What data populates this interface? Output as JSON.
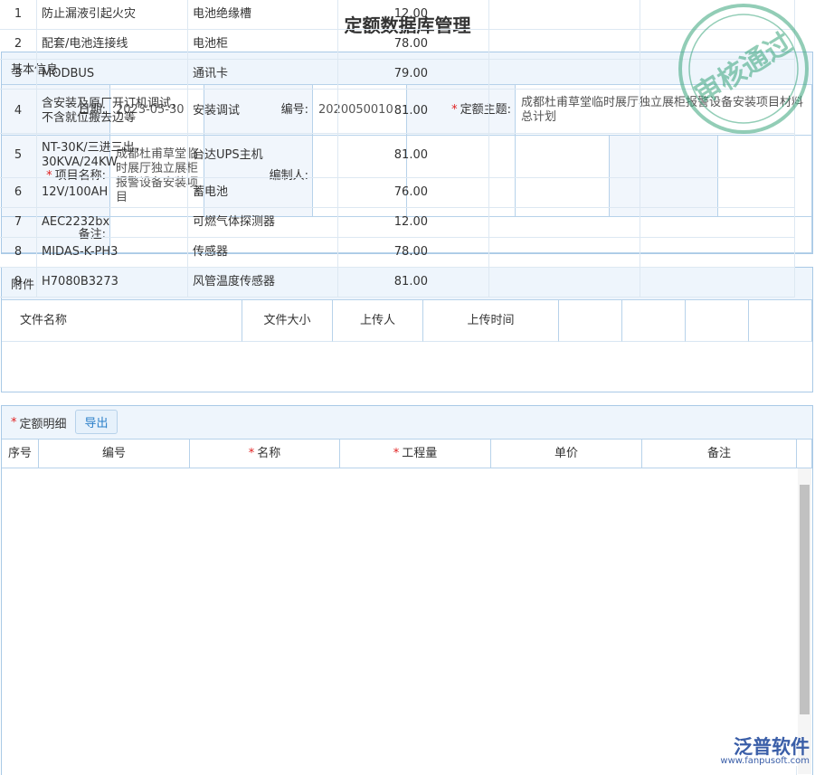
{
  "title": "定额数据库管理",
  "required_mark": "*",
  "stamp": "审核通过",
  "basic_info": {
    "heading": "基本信息",
    "fields": [
      {
        "label": "日期:",
        "value": "2023-05-30"
      },
      {
        "label": "编号:",
        "value": "2020050010"
      },
      {
        "label": "定额主题:",
        "value": "成都杜甫草堂临时展厅独立展柜报警设备安装项目材料总计划",
        "required": true
      },
      {
        "label": "项目名称:",
        "value": "成都杜甫草堂临时展厅独立展柜报警设备安装项目",
        "required": true
      },
      {
        "label": "编制人:"
      },
      {
        "label": "备注:"
      }
    ]
  },
  "attachments": {
    "heading": "附件",
    "columns": [
      "文件名称",
      "文件大小",
      "上传人",
      "上传时间"
    ]
  },
  "details": {
    "heading": "定额明细",
    "required": true,
    "export_button": "导出",
    "columns": [
      {
        "label": "序号"
      },
      {
        "label": "编号"
      },
      {
        "label": "名称",
        "required": true
      },
      {
        "label": "工程量",
        "required": true
      },
      {
        "label": "单价"
      },
      {
        "label": "备注"
      }
    ],
    "rows": [
      [
        "1",
        "防止漏液引起火灾",
        "电池绝缘槽",
        "12.00"
      ],
      [
        "2",
        "配套/电池连接线",
        "电池柜",
        "78.00"
      ],
      [
        "3",
        "MODBUS",
        "通讯卡",
        "79.00"
      ],
      [
        "4",
        "含安装及原厂开订机调试，不含就位搬去边等",
        "安装调试",
        "81.00"
      ],
      [
        "5",
        "NT-30K/三进三出，30KVA/24KW",
        "台达UPS主机",
        "81.00"
      ],
      [
        "6",
        "12V/100AH",
        "蓄电池",
        "76.00"
      ],
      [
        "7",
        "AEC2232bx",
        "可燃气体探测器",
        "12.00"
      ],
      [
        "8",
        "MIDAS-K-PH3",
        "传感器",
        "78.00"
      ],
      [
        "9",
        "H7080B3273",
        "风管温度传感器",
        "81.00"
      ]
    ]
  },
  "logo": {
    "name": "泛普软件",
    "url": "www.fanpusoft.com"
  }
}
